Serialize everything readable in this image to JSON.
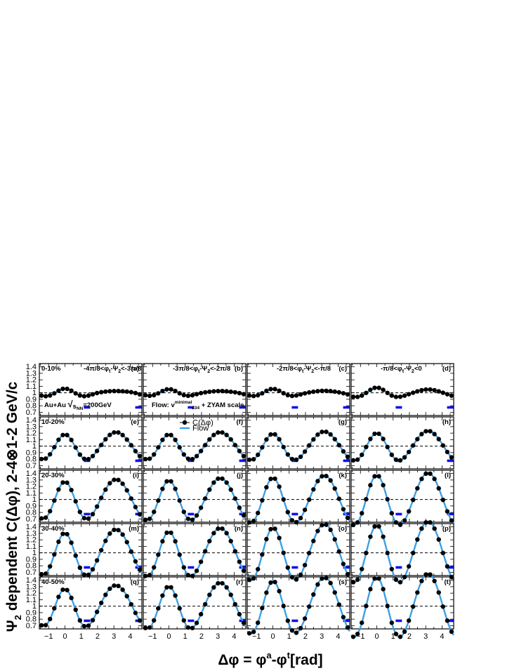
{
  "figure": {
    "ylabel_parts": [
      "Ψ",
      "2",
      " dependent C(Δφ), 2-4⊗1-2 GeV/c"
    ],
    "xlabel_parts": [
      "Δφ =  φ",
      "a",
      "-φ",
      "t",
      "[rad]"
    ],
    "collision_parts": [
      "Au+Au  ",
      "√",
      "s",
      "NN",
      "=200GeV"
    ],
    "flow_note_parts": [
      "Flow: v",
      "minimal",
      "234",
      " + ZYAM scale"
    ],
    "legend": [
      {
        "key": "data",
        "label": "C(Δφ)"
      },
      {
        "key": "flow",
        "label": "Flow"
      }
    ],
    "xticks": [
      -1,
      0,
      1,
      2,
      3,
      4
    ],
    "yticks": [
      "0.7",
      "0.8",
      "0.9",
      "1",
      "1.1",
      "1.2",
      "1.3",
      "1.4"
    ],
    "colors": {
      "data": "#000000",
      "flow": "#3aa0e6",
      "bar": "#1010ee",
      "reference": "#000000"
    },
    "column_labels": [
      [
        "-4π/8<φ",
        "t",
        "-Ψ",
        "2",
        "<-3π/8"
      ],
      [
        "-3π/8<φ",
        "t",
        "-Ψ",
        "2",
        "<-2π/8"
      ],
      [
        "-2π/8<φ",
        "t",
        "-Ψ",
        "2",
        "<-π/8"
      ],
      [
        "-π/8<φ",
        "t",
        "-Ψ",
        "2",
        "<0"
      ]
    ],
    "row_labels": [
      "0-10%",
      "10-20%",
      "20-30%",
      "30-40%",
      "40-50%"
    ],
    "panel_letters": [
      "(a)",
      "(b)",
      "(c)",
      "(d)",
      "(e)",
      "(f)",
      "(g)",
      "(h)",
      "(i)",
      "(j)",
      "(k)",
      "(l)",
      "(m)",
      "(n)",
      "(o)",
      "(p)",
      "(q)",
      "(r)",
      "(s)",
      "(t)"
    ]
  },
  "chart_data": {
    "type": "scatter",
    "description_of_layout_source": "5 rows (centrality) × 4 columns (φt−Ψ2 bins), shared axes",
    "xlim": [
      -1.5708,
      4.7124
    ],
    "ylim": [
      0.65,
      1.45
    ],
    "reference_line_y": 1.0,
    "near_side_marker_x": 1.35,
    "away_side_marker_x": 4.5,
    "panels": [
      [
        {
          "a1": -0.004,
          "a2": 0.02,
          "a3": 0.012,
          "a4": 0.003,
          "s2": 0.0
        },
        {
          "a1": -0.004,
          "a2": 0.018,
          "a3": 0.01,
          "a4": 0.003,
          "s2": 0.005
        },
        {
          "a1": -0.004,
          "a2": 0.02,
          "a3": 0.01,
          "a4": 0.003,
          "s2": 0.01
        },
        {
          "a1": -0.004,
          "a2": 0.03,
          "a3": 0.01,
          "a4": 0.003,
          "s2": 0.0
        }
      ],
      [
        {
          "a1": -0.03,
          "a2": 0.095,
          "a3": 0.02,
          "a4": 0.004,
          "s2": -0.006
        },
        {
          "a1": -0.03,
          "a2": 0.095,
          "a3": 0.02,
          "a4": 0.004,
          "s2": 0.0
        },
        {
          "a1": -0.03,
          "a2": 0.1,
          "a3": 0.02,
          "a4": 0.004,
          "s2": 0.006
        },
        {
          "a1": -0.03,
          "a2": 0.105,
          "a3": 0.02,
          "a4": 0.004,
          "s2": 0.0
        }
      ],
      [
        {
          "a1": -0.04,
          "a2": 0.14,
          "a3": 0.03,
          "a4": 0.006,
          "s2": -0.01
        },
        {
          "a1": -0.04,
          "a2": 0.15,
          "a3": 0.03,
          "a4": 0.006,
          "s2": 0.0
        },
        {
          "a1": -0.04,
          "a2": 0.17,
          "a3": 0.03,
          "a4": 0.006,
          "s2": 0.01
        },
        {
          "a1": -0.04,
          "a2": 0.19,
          "a3": 0.03,
          "a4": 0.006,
          "s2": 0.0
        }
      ],
      [
        {
          "a1": -0.05,
          "a2": 0.16,
          "a3": 0.035,
          "a4": 0.007,
          "s2": -0.016
        },
        {
          "a1": -0.05,
          "a2": 0.17,
          "a3": 0.035,
          "a4": 0.007,
          "s2": 0.0
        },
        {
          "a1": -0.05,
          "a2": 0.2,
          "a3": 0.035,
          "a4": 0.007,
          "s2": 0.016
        },
        {
          "a1": -0.05,
          "a2": 0.22,
          "a3": 0.035,
          "a4": 0.007,
          "s2": 0.0
        }
      ],
      [
        {
          "a1": -0.05,
          "a2": 0.14,
          "a3": 0.035,
          "a4": 0.007,
          "s2": -0.02
        },
        {
          "a1": -0.05,
          "a2": 0.16,
          "a3": 0.035,
          "a4": 0.007,
          "s2": 0.0
        },
        {
          "a1": -0.05,
          "a2": 0.2,
          "a3": 0.035,
          "a4": 0.007,
          "s2": 0.02
        },
        {
          "a1": -0.05,
          "a2": 0.23,
          "a3": 0.035,
          "a4": 0.007,
          "s2": 0.0
        }
      ]
    ]
  }
}
